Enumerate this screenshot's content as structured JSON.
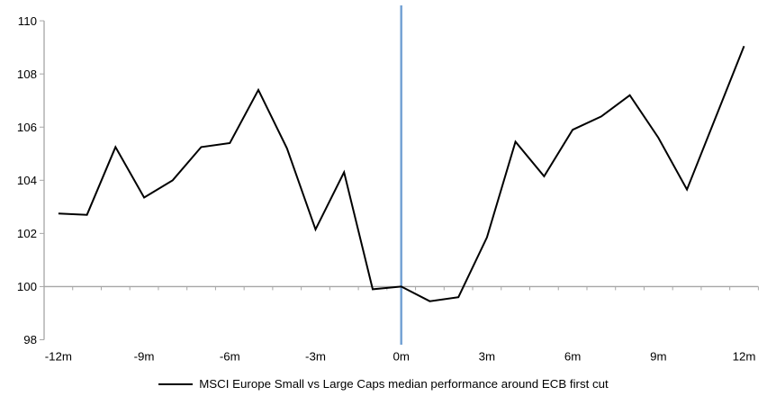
{
  "chart_data": {
    "type": "line",
    "title": "",
    "x": [
      -12,
      -11,
      -10,
      -9,
      -8,
      -7,
      -6,
      -5,
      -4,
      -3,
      -2,
      -1,
      0,
      1,
      2,
      3,
      4,
      5,
      6,
      7,
      8,
      9,
      10,
      11,
      12
    ],
    "series": [
      {
        "name": "MSCI Europe Small vs Large Caps median performance around ECB first cut",
        "color": "#000000",
        "values": [
          102.75,
          102.7,
          105.25,
          103.35,
          104.0,
          105.25,
          105.4,
          107.4,
          105.2,
          102.15,
          104.3,
          99.9,
          100.0,
          99.45,
          99.6,
          101.85,
          105.45,
          104.15,
          105.9,
          106.4,
          107.2,
          105.6,
          103.65,
          106.35,
          109.05
        ]
      }
    ],
    "xtick_positions": [
      -12,
      -9,
      -6,
      -3,
      0,
      3,
      6,
      9,
      12
    ],
    "xtick_labels": [
      "-12m",
      "-9m",
      "-6m",
      "-3m",
      "0m",
      "3m",
      "6m",
      "9m",
      "12m"
    ],
    "yticks": [
      98,
      100,
      102,
      104,
      106,
      108,
      110
    ],
    "ylim": [
      98,
      110
    ],
    "baseline_value": 100,
    "event_line": {
      "x": 0,
      "color": "#74A2D4"
    },
    "axis_color": "#A6A6A6",
    "grid": "baseline-only",
    "legend_position": "bottom-center"
  },
  "legend": {
    "series_label": "MSCI Europe Small vs Large Caps median performance around ECB first cut"
  }
}
